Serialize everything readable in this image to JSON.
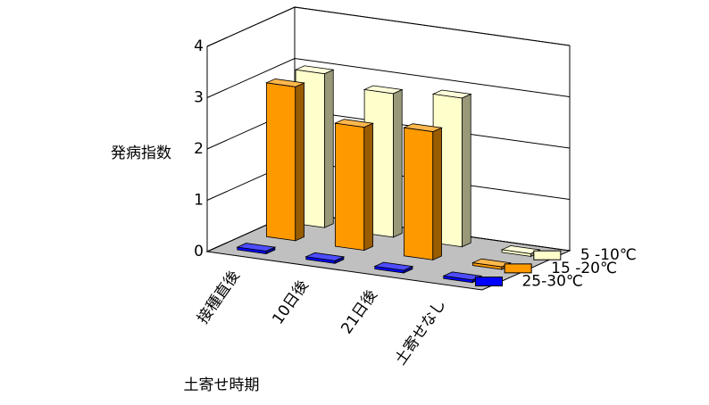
{
  "chart_data": {
    "type": "bar3d",
    "y_label": "発病指数",
    "x_label": "土寄せ時期",
    "categories": [
      "接種直後",
      "10日後",
      "21日後",
      "土寄せなし"
    ],
    "series": [
      {
        "name": "5 -10℃",
        "color": "#ffffcc",
        "values": [
          3.0,
          2.8,
          2.9,
          0
        ]
      },
      {
        "name": "15 -20℃",
        "color": "#ff9900",
        "values": [
          3.0,
          2.4,
          2.5,
          0
        ]
      },
      {
        "name": "25-30℃",
        "color": "#0000ff",
        "values": [
          0,
          0,
          0,
          0
        ]
      }
    ],
    "ylim": [
      0,
      4
    ],
    "yticks": [
      0,
      1,
      2,
      3,
      4
    ],
    "grid": true
  }
}
